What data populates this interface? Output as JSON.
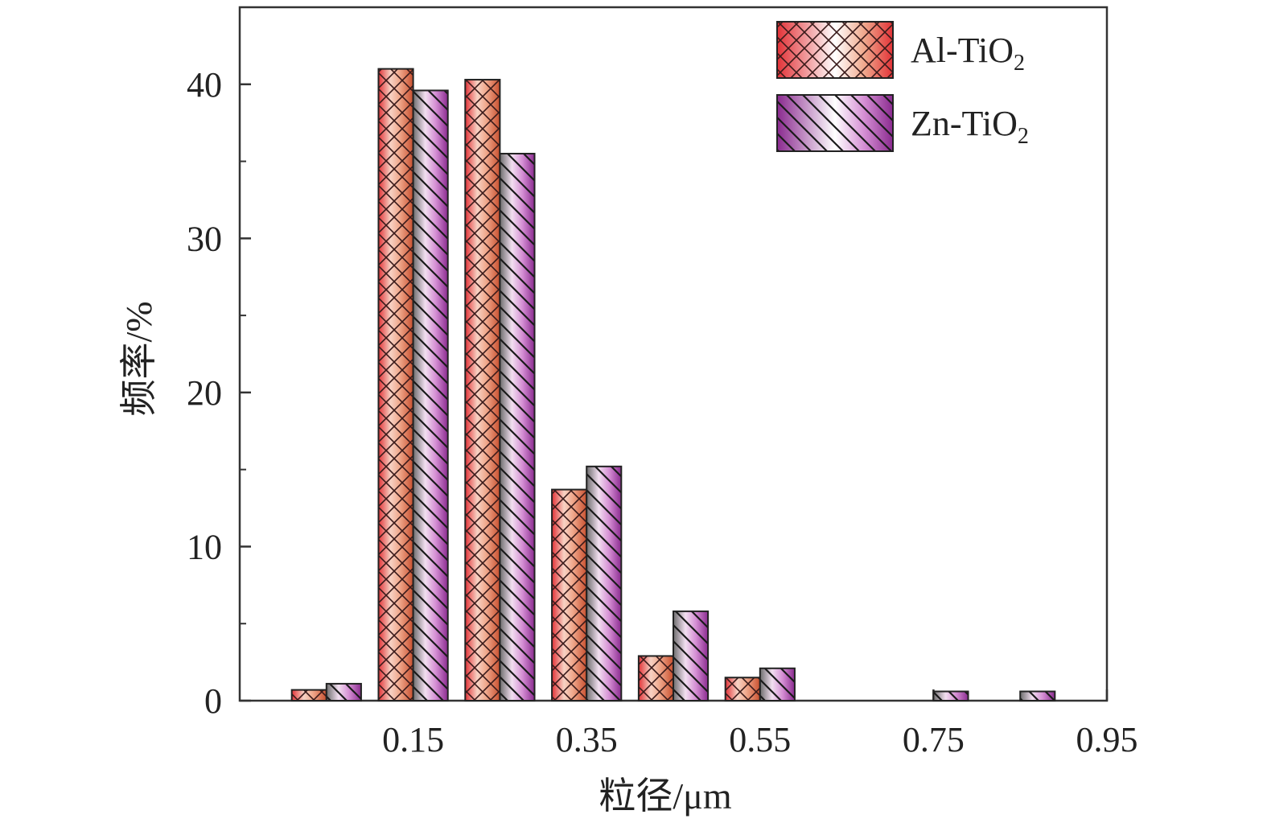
{
  "chart_data": {
    "type": "bar",
    "title": "",
    "xlabel": "粒径/μm",
    "ylabel": "频率/%",
    "ylim": [
      0,
      45
    ],
    "xlim": [
      -0.05,
      0.95
    ],
    "x_ticks": [
      "0.15",
      "0.35",
      "0.55",
      "0.75",
      "0.95"
    ],
    "y_ticks": [
      "0",
      "10",
      "20",
      "30",
      "40"
    ],
    "grid": false,
    "legend_position": "top-right",
    "categories": [
      "0.05",
      "0.15",
      "0.25",
      "0.35",
      "0.45",
      "0.55",
      "0.65",
      "0.75",
      "0.85"
    ],
    "series": [
      {
        "name": "Al-TiO2",
        "name_base": "Al-TiO",
        "name_sub": "2",
        "pattern": "crosshatch",
        "colors": [
          "#e8323a",
          "#f6c6b8",
          "#d25e3c"
        ],
        "values": [
          0.7,
          41.0,
          40.3,
          13.7,
          2.9,
          1.5,
          0,
          0,
          0
        ]
      },
      {
        "name": "Zn-TiO2",
        "name_base": "Zn-TiO",
        "name_sub": "2",
        "pattern": "diagonal",
        "colors": [
          "#8b2c8f",
          "#e8b8e6",
          "#707070"
        ],
        "values": [
          1.1,
          39.6,
          35.5,
          15.2,
          5.8,
          2.1,
          0,
          0.6,
          0.6
        ]
      }
    ]
  }
}
